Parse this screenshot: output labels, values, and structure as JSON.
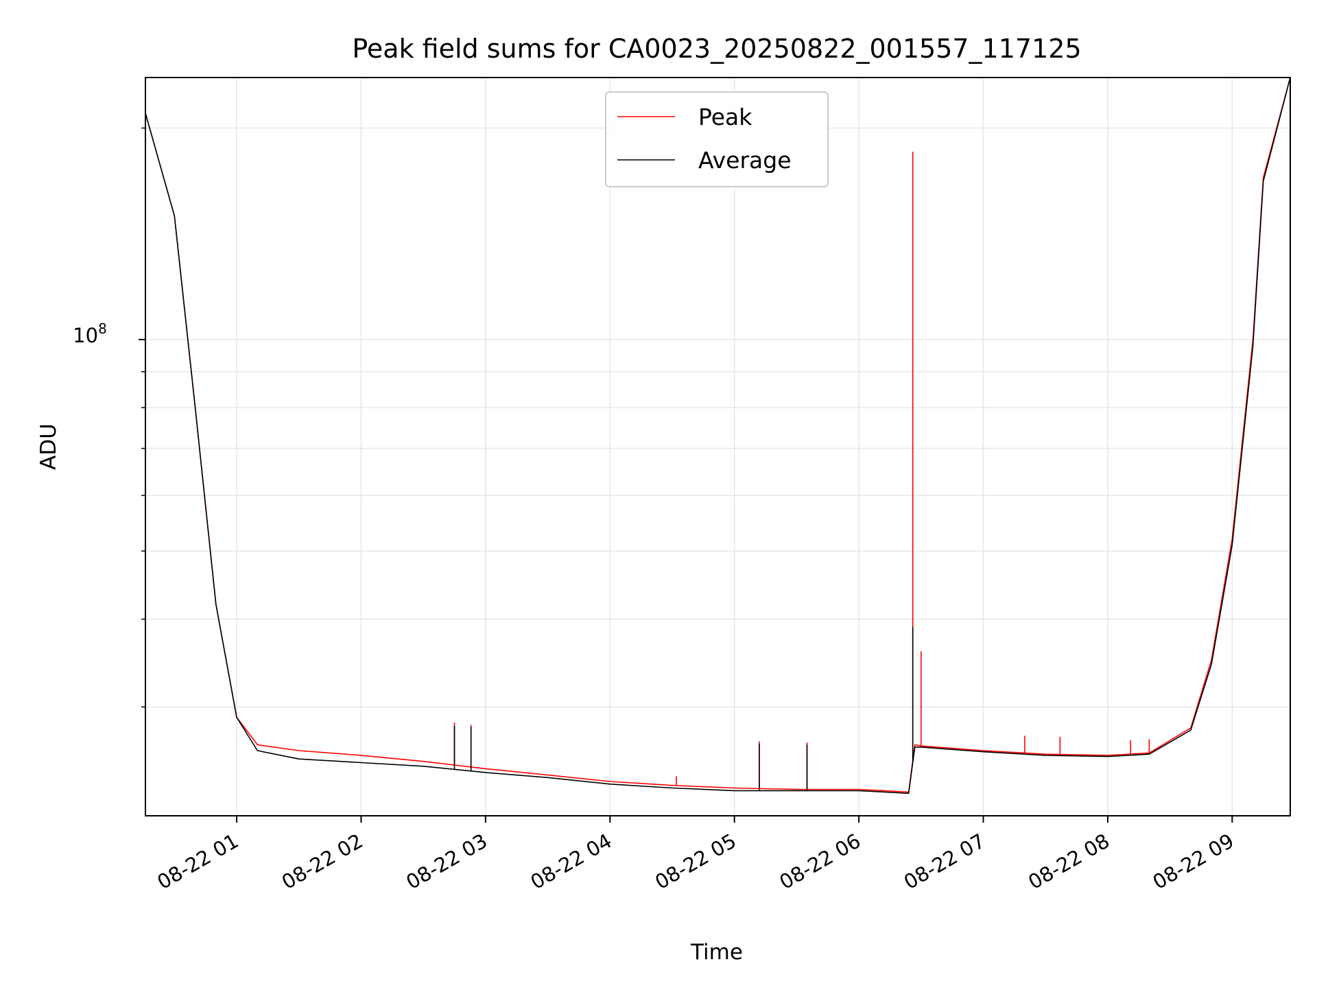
{
  "chart_data": {
    "type": "line",
    "title": "Peak field sums for CA0023_20250822_001557_117125",
    "xlabel": "Time",
    "ylabel": "ADU",
    "y_scale": "log",
    "y_tick_label_base": "10",
    "y_tick_label_exp": "8",
    "y_tick_major": [
      100000000
    ],
    "y_tick_minor": [
      30000000,
      40000000,
      50000000,
      60000000,
      70000000,
      80000000,
      90000000,
      200000000
    ],
    "ylim": [
      21000000,
      236000000
    ],
    "xlim": [
      "2025-08-22 00:16",
      "2025-08-22 09:28"
    ],
    "x_ticks": [
      "2025-08-22 01:00",
      "2025-08-22 02:00",
      "2025-08-22 03:00",
      "2025-08-22 04:00",
      "2025-08-22 05:00",
      "2025-08-22 06:00",
      "2025-08-22 07:00",
      "2025-08-22 08:00",
      "2025-08-22 09:00"
    ],
    "x_tick_labels": [
      "08-22 01",
      "08-22 02",
      "08-22 03",
      "08-22 04",
      "08-22 05",
      "08-22 06",
      "08-22 07",
      "08-22 08",
      "08-22 09"
    ],
    "grid": true,
    "legend_position": "upper center",
    "colors": {
      "peak": "#ff0000",
      "average": "#000000",
      "grid": "#e6e6e6"
    },
    "x": [
      "2025-08-22 00:16",
      "2025-08-22 00:30",
      "2025-08-22 00:40",
      "2025-08-22 00:50",
      "2025-08-22 01:00",
      "2025-08-22 01:10",
      "2025-08-22 01:30",
      "2025-08-22 02:00",
      "2025-08-22 02:30",
      "2025-08-22 03:00",
      "2025-08-22 03:30",
      "2025-08-22 04:00",
      "2025-08-22 04:30",
      "2025-08-22 05:00",
      "2025-08-22 05:30",
      "2025-08-22 06:00",
      "2025-08-22 06:24",
      "2025-08-22 06:27",
      "2025-08-22 06:30",
      "2025-08-22 07:00",
      "2025-08-22 07:30",
      "2025-08-22 08:00",
      "2025-08-22 08:20",
      "2025-08-22 08:40",
      "2025-08-22 08:50",
      "2025-08-22 09:00",
      "2025-08-22 09:10",
      "2025-08-22 09:15",
      "2025-08-22 09:28"
    ],
    "series": [
      {
        "name": "Peak",
        "values": [
          210000000,
          150000000,
          80000000,
          42000000,
          29000000,
          26500000,
          26000000,
          25600000,
          25100000,
          24500000,
          24000000,
          23500000,
          23200000,
          23000000,
          22900000,
          22900000,
          22700000,
          26500000,
          26400000,
          26000000,
          25700000,
          25600000,
          25800000,
          28000000,
          35000000,
          52000000,
          100000000,
          170000000,
          236000000
        ],
        "spikes": [
          {
            "x": "2025-08-22 02:45",
            "y": 28500000
          },
          {
            "x": "2025-08-22 02:53",
            "y": 28300000
          },
          {
            "x": "2025-08-22 04:32",
            "y": 23900000
          },
          {
            "x": "2025-08-22 05:12",
            "y": 26800000
          },
          {
            "x": "2025-08-22 05:35",
            "y": 26700000
          },
          {
            "x": "2025-08-22 06:26",
            "y": 185000000
          },
          {
            "x": "2025-08-22 06:30",
            "y": 36000000
          },
          {
            "x": "2025-08-22 07:20",
            "y": 27300000
          },
          {
            "x": "2025-08-22 07:37",
            "y": 27200000
          },
          {
            "x": "2025-08-22 08:11",
            "y": 26900000
          },
          {
            "x": "2025-08-22 08:20",
            "y": 27000000
          }
        ]
      },
      {
        "name": "Average",
        "values": [
          210000000,
          150000000,
          80000000,
          42000000,
          29000000,
          26000000,
          25300000,
          25000000,
          24700000,
          24200000,
          23800000,
          23300000,
          23000000,
          22800000,
          22800000,
          22800000,
          22600000,
          26300000,
          26300000,
          25900000,
          25600000,
          25500000,
          25700000,
          27800000,
          34500000,
          51000000,
          98000000,
          168000000,
          236000000
        ],
        "spikes": [
          {
            "x": "2025-08-22 02:45",
            "y": 28200000
          },
          {
            "x": "2025-08-22 02:53",
            "y": 28100000
          },
          {
            "x": "2025-08-22 05:12",
            "y": 26600000
          },
          {
            "x": "2025-08-22 05:35",
            "y": 26500000
          },
          {
            "x": "2025-08-22 06:26",
            "y": 39000000
          }
        ]
      }
    ]
  }
}
